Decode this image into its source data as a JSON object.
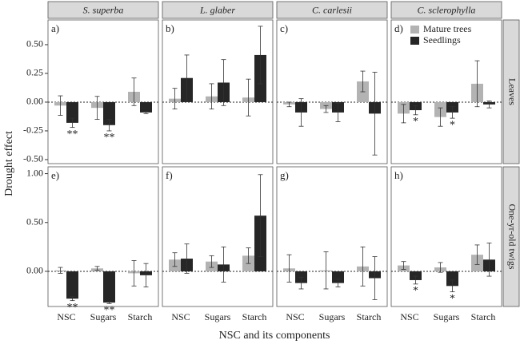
{
  "chart_data": {
    "type": "bar",
    "xlabel": "NSC and its components",
    "ylabel": "Drought effect",
    "categories": [
      "NSC",
      "Sugars",
      "Starch"
    ],
    "columns": [
      "S. superba",
      "L. glaber",
      "C. carlesii",
      "C. sclerophylla"
    ],
    "series": [
      {
        "name": "Mature trees",
        "color": "#b3b3b3"
      },
      {
        "name": "Seedlings",
        "color": "#262626"
      }
    ],
    "rows": [
      {
        "label": "Leaves",
        "ylim": [
          -0.535,
          0.715
        ],
        "yticks": [
          {
            "value": -0.5,
            "label": "-0.50"
          },
          {
            "value": -0.25,
            "label": "-0.25"
          },
          {
            "value": 0,
            "label": "0.00"
          },
          {
            "value": 0.25,
            "label": "0.25"
          },
          {
            "value": 0.5,
            "label": "0.50"
          }
        ],
        "panels": [
          {
            "tag": "a)",
            "series": [
              {
                "values": [
                  -0.03,
                  -0.05,
                  0.09
                ],
                "errors": [
                  0.085,
                  0.1,
                  0.12
                ],
                "labels": [
                  null,
                  null,
                  null
                ]
              },
              {
                "values": [
                  -0.18,
                  -0.2,
                  -0.09
                ],
                "errors": [
                  0.04,
                  0.05,
                  0.01
                ],
                "labels": [
                  "**",
                  "**",
                  null
                ]
              }
            ]
          },
          {
            "tag": "b)",
            "series": [
              {
                "values": [
                  0.03,
                  0.05,
                  0.04
                ],
                "errors": [
                  0.09,
                  0.11,
                  0.16
                ],
                "labels": [
                  null,
                  null,
                  null
                ]
              },
              {
                "values": [
                  0.21,
                  0.17,
                  0.41
                ],
                "errors": [
                  0.2,
                  0.2,
                  0.25
                ],
                "labels": [
                  null,
                  null,
                  null
                ]
              }
            ]
          },
          {
            "tag": "c)",
            "series": [
              {
                "values": [
                  -0.02,
                  -0.06,
                  0.18
                ],
                "errors": [
                  0.02,
                  0.03,
                  0.09
                ],
                "labels": [
                  null,
                  null,
                  null
                ]
              },
              {
                "values": [
                  -0.09,
                  -0.09,
                  -0.1
                ],
                "errors": [
                  0.12,
                  0.08,
                  0.36
                ],
                "labels": [
                  null,
                  null,
                  null
                ]
              }
            ]
          },
          {
            "tag": "d)",
            "series": [
              {
                "values": [
                  -0.1,
                  -0.13,
                  0.16
                ],
                "errors": [
                  0.08,
                  0.08,
                  0.2
                ],
                "labels": [
                  null,
                  null,
                  null
                ]
              },
              {
                "values": [
                  -0.07,
                  -0.09,
                  -0.02
                ],
                "errors": [
                  0.04,
                  0.05,
                  0.03
                ],
                "labels": [
                  "*",
                  "*",
                  null
                ]
              }
            ]
          }
        ]
      },
      {
        "label": "One-yr-old twigs",
        "ylim": [
          -0.36,
          1.07
        ],
        "yticks": [
          {
            "value": 0,
            "label": "0.00"
          },
          {
            "value": 0.5,
            "label": "0.50"
          },
          {
            "value": 1,
            "label": "1.00"
          }
        ],
        "panels": [
          {
            "tag": "e)",
            "series": [
              {
                "values": [
                  0.01,
                  0.03,
                  -0.02
                ],
                "errors": [
                  0.03,
                  0.02,
                  0.13
                ],
                "labels": [
                  null,
                  null,
                  null
                ]
              },
              {
                "values": [
                  -0.28,
                  -0.32,
                  -0.04
                ],
                "errors": [
                  0.02,
                  0.01,
                  0.12
                ],
                "labels": [
                  "**",
                  "**",
                  null
                ]
              }
            ]
          },
          {
            "tag": "f)",
            "series": [
              {
                "values": [
                  0.12,
                  0.1,
                  0.16
                ],
                "errors": [
                  0.07,
                  0.06,
                  0.08
                ],
                "labels": [
                  null,
                  null,
                  null
                ]
              },
              {
                "values": [
                  0.13,
                  0.07,
                  0.57
                ],
                "errors": [
                  0.15,
                  0.18,
                  0.42
                ],
                "labels": [
                  null,
                  null,
                  null
                ]
              }
            ]
          },
          {
            "tag": "g)",
            "series": [
              {
                "values": [
                  0.03,
                  0.01,
                  0.05
                ],
                "errors": [
                  0.14,
                  0.19,
                  0.2
                ],
                "labels": [
                  null,
                  null,
                  null
                ]
              },
              {
                "values": [
                  -0.12,
                  -0.12,
                  -0.07
                ],
                "errors": [
                  0.06,
                  0.04,
                  0.22
                ],
                "labels": [
                  null,
                  null,
                  null
                ]
              }
            ]
          },
          {
            "tag": "h)",
            "series": [
              {
                "values": [
                  0.06,
                  0.04,
                  0.17
                ],
                "errors": [
                  0.04,
                  0.05,
                  0.1
                ],
                "labels": [
                  null,
                  null,
                  null
                ]
              },
              {
                "values": [
                  -0.09,
                  -0.15,
                  0.12
                ],
                "errors": [
                  0.04,
                  0.06,
                  0.17
                ],
                "labels": [
                  "*",
                  "*",
                  null
                ]
              }
            ]
          }
        ]
      }
    ]
  }
}
